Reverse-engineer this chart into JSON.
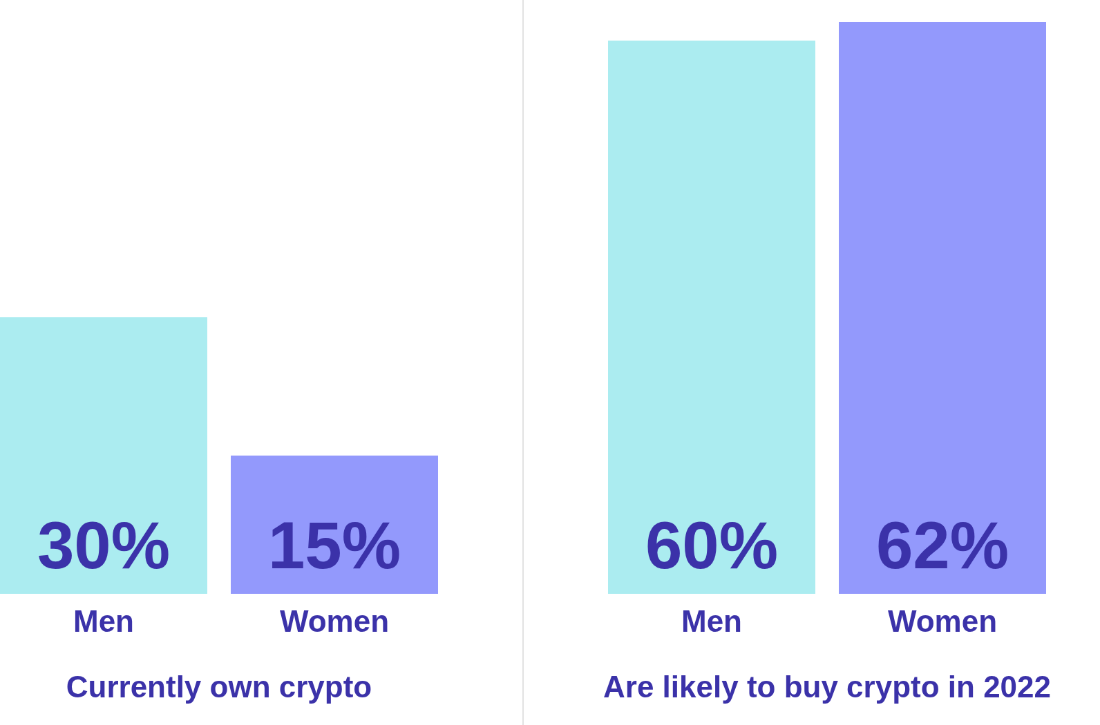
{
  "chart_data": [
    {
      "type": "bar",
      "xlabel": "Currently own crypto",
      "categories": [
        "Men",
        "Women"
      ],
      "values": [
        30,
        15
      ],
      "colors": [
        "#abecf0",
        "#9399fc"
      ],
      "value_labels": [
        "30%",
        "15%"
      ],
      "tick_labels": "x"
    },
    {
      "type": "bar",
      "xlabel": "Are likely to buy crypto in 2022",
      "categories": [
        "Men",
        "Women"
      ],
      "values": [
        60,
        62
      ],
      "colors": [
        "#abecf0",
        "#9399fc"
      ],
      "value_labels": [
        "60%",
        "62%"
      ],
      "tick_labels": "x"
    }
  ]
}
